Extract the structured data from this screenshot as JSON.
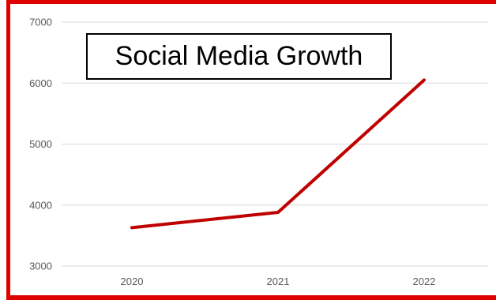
{
  "chart_data": {
    "type": "line",
    "title": "Social Media Growth",
    "xlabel": "",
    "ylabel": "",
    "categories": [
      "2020",
      "2021",
      "2022"
    ],
    "series": [
      {
        "values": [
          3630,
          3880,
          6050
        ]
      }
    ],
    "ylim": [
      3000,
      7000
    ],
    "yticks": [
      3000,
      4000,
      5000,
      6000,
      7000
    ],
    "ytick_labels": [
      "3000",
      "4000",
      "5000",
      "6000",
      "7000"
    ],
    "grid": "horizontal",
    "legend": "none"
  },
  "colors": {
    "line": "#c00000",
    "frame": "#e00000",
    "gridline": "#d9d9d9",
    "tick_text": "#595959"
  }
}
